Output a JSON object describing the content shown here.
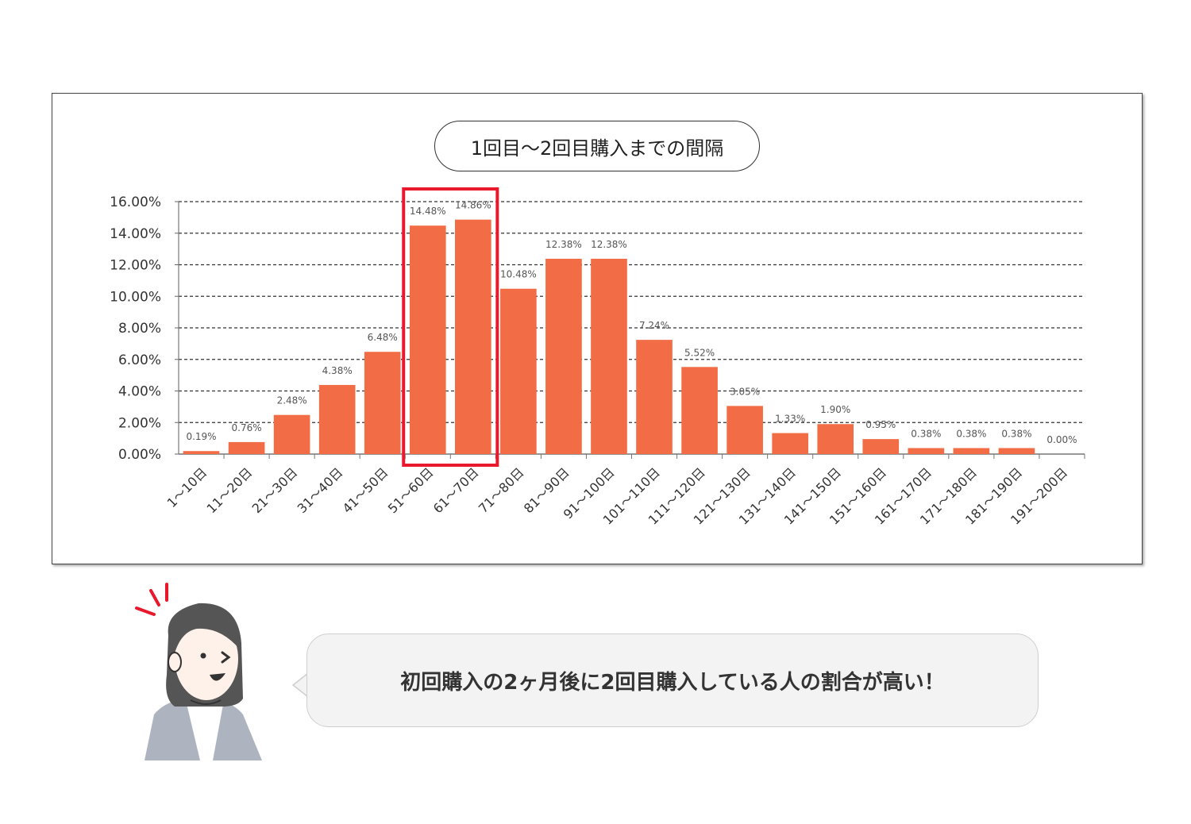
{
  "title": "1回目～2回目購入までの間隔",
  "speech": "初回購入の2ヶ月後に2回目購入している人の割合が高い！",
  "colors": {
    "bar": "#f26d45",
    "highlight": "#e8192c",
    "grid": "#333333",
    "bubble": "#f3f3f3"
  },
  "icons": {
    "person": "person-illustration-icon"
  },
  "highlight_categories": [
    "51～60日",
    "61～70日"
  ],
  "chart_data": {
    "type": "bar",
    "title": "1回目～2回目購入までの間隔",
    "xlabel": "",
    "ylabel": "",
    "ylim": [
      0,
      16
    ],
    "yticks": [
      "0.00%",
      "2.00%",
      "4.00%",
      "6.00%",
      "8.00%",
      "10.00%",
      "12.00%",
      "14.00%",
      "16.00%"
    ],
    "grid": true,
    "categories": [
      "1～10日",
      "11～20日",
      "21～30日",
      "31～40日",
      "41～50日",
      "51～60日",
      "61～70日",
      "71～80日",
      "81～90日",
      "91～100日",
      "101～110日",
      "111～120日",
      "121～130日",
      "131～140日",
      "141～150日",
      "151～160日",
      "161～170日",
      "171～180日",
      "181～190日",
      "191～200日"
    ],
    "values": [
      0.19,
      0.76,
      2.48,
      4.38,
      6.48,
      14.48,
      14.86,
      10.48,
      12.38,
      12.38,
      7.24,
      5.52,
      3.05,
      1.33,
      1.9,
      0.95,
      0.38,
      0.38,
      0.38,
      0.0
    ],
    "data_labels": [
      "0.19%",
      "0.76%",
      "2.48%",
      "4.38%",
      "6.48%",
      "14.48%",
      "14.86%",
      "10.48%",
      "12.38%",
      "12.38%",
      "7.24%",
      "5.52%",
      "3.05%",
      "1.33%",
      "1.90%",
      "0.95%",
      "0.38%",
      "0.38%",
      "0.38%",
      "0.00%"
    ]
  }
}
